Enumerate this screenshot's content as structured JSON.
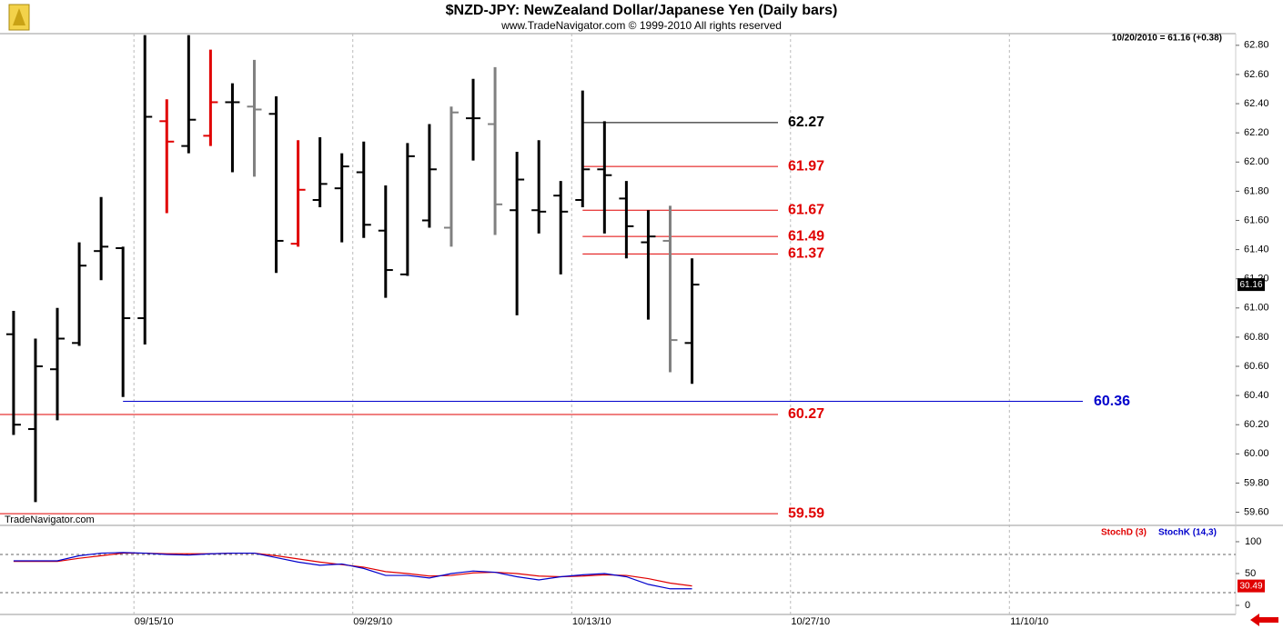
{
  "chart_data": [
    {
      "type": "ohlc",
      "title": "$NZD-JPY:  NewZealand Dollar/Japanese Yen  (Daily bars)",
      "subtitle": "www.TradeNavigator.com © 1999-2010 All rights reserved",
      "annotation": "10/20/2010 = 61.16 (+0.38)",
      "watermark": "TradeNavigator.com",
      "categories": [
        null,
        null,
        null,
        null,
        null,
        null,
        null,
        null,
        null,
        null,
        null,
        null,
        null,
        null,
        null,
        null,
        null,
        null,
        null,
        null,
        null,
        null,
        null,
        null,
        null,
        null,
        null,
        null,
        null,
        null,
        null,
        null
      ],
      "open": [
        60.82,
        60.17,
        60.58,
        60.76,
        61.39,
        61.41,
        60.93,
        62.28,
        62.11,
        62.18,
        62.41,
        62.38,
        62.33,
        61.44,
        61.74,
        61.82,
        61.93,
        61.53,
        61.23,
        61.6,
        61.55,
        62.3,
        62.26,
        61.67,
        61.67,
        61.77,
        61.74,
        61.95,
        61.75,
        61.45,
        61.46,
        60.76
      ],
      "high": [
        60.98,
        60.79,
        61.0,
        61.45,
        61.76,
        61.42,
        62.87,
        62.43,
        62.87,
        62.77,
        62.54,
        62.7,
        62.45,
        62.15,
        62.17,
        62.06,
        62.14,
        61.84,
        62.13,
        62.26,
        62.38,
        62.57,
        62.65,
        62.07,
        62.15,
        61.87,
        62.49,
        62.28,
        61.87,
        61.67,
        61.7,
        61.34
      ],
      "low": [
        60.13,
        59.67,
        60.23,
        60.74,
        61.19,
        60.39,
        60.75,
        61.65,
        62.06,
        62.11,
        61.93,
        61.9,
        61.24,
        61.42,
        61.69,
        61.45,
        61.48,
        61.07,
        61.22,
        61.55,
        61.42,
        62.01,
        61.5,
        60.95,
        61.51,
        61.23,
        61.69,
        61.51,
        61.34,
        60.92,
        60.56,
        60.48
      ],
      "close": [
        60.2,
        60.6,
        60.79,
        61.29,
        61.42,
        60.93,
        62.31,
        62.14,
        62.29,
        62.41,
        62.41,
        62.36,
        61.46,
        61.81,
        61.85,
        61.97,
        61.57,
        61.26,
        62.04,
        61.95,
        62.34,
        62.3,
        61.71,
        61.88,
        61.66,
        61.66,
        61.95,
        61.91,
        61.56,
        61.49,
        60.78,
        61.16
      ],
      "bar_colors": [
        "#000000",
        "#000000",
        "#000000",
        "#000000",
        "#000000",
        "#000000",
        "#000000",
        "#e00000",
        "#000000",
        "#e00000",
        "#000000",
        "#808080",
        "#000000",
        "#e00000",
        "#000000",
        "#000000",
        "#000000",
        "#000000",
        "#000000",
        "#000000",
        "#808080",
        "#000000",
        "#808080",
        "#000000",
        "#000000",
        "#000000",
        "#000000",
        "#000000",
        "#000000",
        "#000000",
        "#808080",
        "#000000"
      ],
      "ylim": [
        59.51,
        62.88
      ],
      "yticks": [
        {
          "value": 59.6,
          "label": "59.60"
        },
        {
          "value": 59.8,
          "label": "59.80"
        },
        {
          "value": 60,
          "label": "60.00"
        },
        {
          "value": 60.2,
          "label": "60.20"
        },
        {
          "value": 60.4,
          "label": "60.40"
        },
        {
          "value": 60.6,
          "label": "60.60"
        },
        {
          "value": 60.8,
          "label": "60.80"
        },
        {
          "value": 61,
          "label": "61.00"
        },
        {
          "value": 61.2,
          "label": "61.20"
        },
        {
          "value": 61.4,
          "label": "61.40"
        },
        {
          "value": 61.6,
          "label": "61.60"
        },
        {
          "value": 61.8,
          "label": "61.80"
        },
        {
          "value": 62,
          "label": "62.00"
        },
        {
          "value": 62.2,
          "label": "62.20"
        },
        {
          "value": 62.4,
          "label": "62.40"
        },
        {
          "value": 62.6,
          "label": "62.60"
        },
        {
          "value": 62.8,
          "label": "62.80"
        }
      ],
      "xlim": [
        -0.62,
        55.84
      ],
      "xticks": [
        {
          "value": 5.5,
          "label": "09/15/10"
        },
        {
          "value": 15.5,
          "label": "09/29/10"
        },
        {
          "value": 25.5,
          "label": "10/13/10"
        },
        {
          "value": 35.5,
          "label": "10/27/10"
        },
        {
          "value": 45.5,
          "label": "11/10/10"
        }
      ],
      "levels": [
        {
          "value": 62.27,
          "color": "#000000"
        },
        {
          "value": 61.97,
          "color": "#e00000"
        },
        {
          "value": 61.67,
          "color": "#e00000"
        },
        {
          "value": 61.49,
          "color": "#e00000"
        },
        {
          "value": 61.37,
          "color": "#e00000"
        },
        {
          "value": 60.36,
          "color": "#0000cc"
        },
        {
          "value": 60.27,
          "color": "#e00000"
        },
        {
          "value": 59.59,
          "color": "#e00000"
        }
      ]
    },
    {
      "type": "line",
      "series": [
        {
          "name": "StochD (3)",
          "color": "#e00000",
          "values": [
            69,
            69,
            69,
            74,
            78,
            82,
            82,
            81,
            81,
            81,
            82,
            82,
            78,
            73,
            68,
            64,
            60,
            53,
            50,
            46,
            47,
            51,
            52,
            50,
            46,
            45,
            46,
            48,
            47,
            42,
            35,
            30.49
          ]
        },
        {
          "name": "StochK (14,3)",
          "color": "#0000cc",
          "values": [
            70,
            70,
            70,
            78,
            82,
            83,
            82,
            80,
            79,
            81,
            82,
            82,
            75,
            68,
            63,
            65,
            58,
            47,
            47,
            43,
            50,
            54,
            52,
            45,
            40,
            45,
            48,
            50,
            45,
            33,
            26,
            26
          ]
        }
      ],
      "ylim": [
        -14.3,
        122.8
      ],
      "yticks": [
        0,
        50,
        100
      ],
      "reference_lines": [
        80,
        20
      ]
    }
  ]
}
